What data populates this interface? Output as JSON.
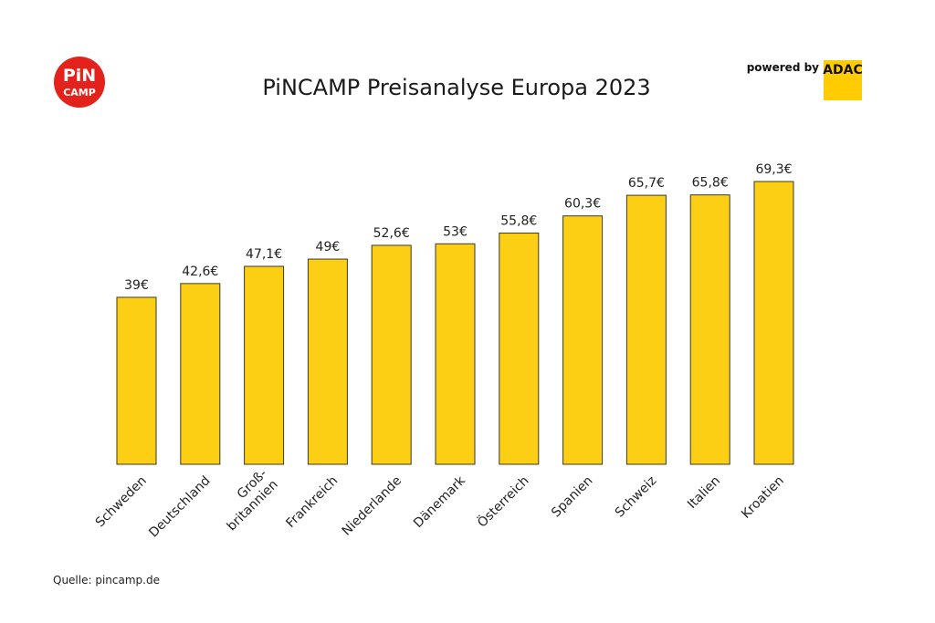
{
  "logo": {
    "line1": "PiN",
    "line2": "CAMP",
    "color": "#e3231b"
  },
  "powered": {
    "text": "powered by",
    "brand": "ADAC",
    "brand_color": "#ffcc00"
  },
  "source": "Quelle: pincamp.de",
  "chart_data": {
    "type": "bar",
    "title": "PiNCAMP Preisanalyse Europa 2023",
    "xlabel": "",
    "ylabel": "",
    "categories": [
      "Schweden",
      "Deutschland",
      "Groß-\nbritannien",
      "Frankreich",
      "Niederlande",
      "Dänemark",
      "Österreich",
      "Spanien",
      "Schweiz",
      "Italien",
      "Kroatien"
    ],
    "values": [
      39,
      42.6,
      47.1,
      49,
      52.6,
      53,
      55.8,
      60.3,
      65.7,
      65.8,
      69.3
    ],
    "labels": [
      "39€",
      "42,6€",
      "47,1€",
      "49€",
      "52,6€",
      "53€",
      "55,8€",
      "60,3€",
      "65,7€",
      "65,8€",
      "69,3€"
    ],
    "ylim": [
      -4.7,
      69.3
    ],
    "grid": false,
    "bar_color": "#fccf14",
    "bar_edge": "#3a3a2a"
  }
}
